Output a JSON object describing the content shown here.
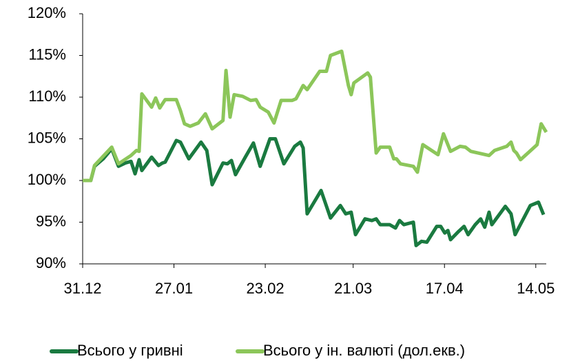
{
  "chart_data": {
    "type": "line",
    "xlim": [
      0,
      137.1
    ],
    "xticks": [
      {
        "value": 0,
        "label": "31.12"
      },
      {
        "value": 27,
        "label": "27.01"
      },
      {
        "value": 54,
        "label": "23.02"
      },
      {
        "value": 80,
        "label": "21.03"
      },
      {
        "value": 107,
        "label": "17.04"
      },
      {
        "value": 134,
        "label": "14.05"
      }
    ],
    "ylim": [
      90,
      120
    ],
    "yticks": [
      {
        "value": 90,
        "label": "90%"
      },
      {
        "value": 95,
        "label": "95%"
      },
      {
        "value": 100,
        "label": "100%"
      },
      {
        "value": 105,
        "label": "105%"
      },
      {
        "value": 110,
        "label": "110%"
      },
      {
        "value": 115,
        "label": "115%"
      },
      {
        "value": 120,
        "label": "120%"
      }
    ],
    "grid": false,
    "legend": "bottom",
    "series": [
      {
        "name": "Всього у гривні",
        "color": "#1a7a40",
        "x": [
          0,
          2.4,
          3.5,
          6.1,
          8.6,
          10.6,
          12.6,
          14.3,
          15.5,
          16.7,
          17.5,
          20.4,
          22.4,
          23.6,
          24.4,
          27.7,
          28.9,
          31.4,
          35,
          36.7,
          38.3,
          41.5,
          42.8,
          44,
          45.2,
          48.1,
          50.5,
          52.5,
          55.4,
          57,
          59.5,
          62.7,
          64.4,
          65.2,
          66.4,
          70.5,
          73.3,
          76.2,
          77.8,
          79.4,
          80.7,
          83.5,
          85.5,
          86.8,
          88,
          90.8,
          92.5,
          93.7,
          95,
          97.8,
          98.6,
          100.2,
          101.8,
          104.7,
          105.9,
          107.1,
          108,
          108.8,
          111.2,
          112.8,
          114,
          116.1,
          117.7,
          118.9,
          120.2,
          121,
          125,
          126.7,
          127.9,
          132.4,
          134.8,
          136.3
        ],
        "values": [
          100.0,
          100.0,
          101.7,
          102.6,
          103.8,
          101.7,
          102.1,
          102.3,
          100.8,
          102.5,
          101.2,
          102.8,
          101.8,
          102.1,
          102.2,
          104.8,
          104.6,
          102.6,
          104.6,
          103.6,
          99.5,
          102.1,
          102.0,
          102.4,
          100.7,
          102.8,
          104.5,
          101.7,
          105.0,
          105.0,
          102.0,
          104.1,
          104.6,
          103.9,
          96.0,
          98.8,
          95.5,
          97.0,
          96.0,
          96.2,
          93.5,
          95.4,
          95.2,
          95.4,
          94.7,
          94.7,
          94.3,
          95.2,
          94.7,
          95.0,
          92.2,
          92.7,
          92.6,
          94.5,
          94.5,
          93.7,
          94.0,
          92.9,
          93.9,
          94.5,
          93.5,
          94.7,
          95.4,
          94.4,
          96.2,
          94.7,
          96.9,
          96.0,
          93.5,
          97.0,
          97.4,
          95.9
        ]
      },
      {
        "name": "Всього у ін. валюті (дол.екв.)",
        "color": "#8cc65a",
        "x": [
          0,
          2.4,
          3.5,
          8.6,
          10.6,
          14.3,
          15.9,
          16.7,
          17.5,
          20.4,
          21.6,
          22.8,
          24.4,
          27.7,
          28.9,
          30.1,
          31.8,
          34.2,
          36.3,
          38.3,
          41.5,
          42.4,
          43.6,
          44.8,
          47.3,
          49.7,
          51.3,
          52.5,
          54.9,
          56.6,
          58.7,
          61.9,
          63.1,
          65.2,
          66.4,
          70.1,
          72.1,
          73.3,
          76.6,
          78.6,
          79.4,
          80.2,
          84.3,
          85.1,
          86.8,
          88,
          90.8,
          92,
          92.8,
          94,
          97.8,
          99,
          100.6,
          105.1,
          106.7,
          108.8,
          111.6,
          113.2,
          114.8,
          120.2,
          121.8,
          125.4,
          126.7,
          127.5,
          128.3,
          129.5,
          134.4,
          135.6,
          137.1
        ],
        "values": [
          100.0,
          100.0,
          101.8,
          104.0,
          102.0,
          103.0,
          103.6,
          103.5,
          110.4,
          108.8,
          109.9,
          108.7,
          109.7,
          109.7,
          108.4,
          106.8,
          106.5,
          106.9,
          108.0,
          106.2,
          107.2,
          113.2,
          107.6,
          110.3,
          110.1,
          109.6,
          109.7,
          108.8,
          108.2,
          106.9,
          109.6,
          109.6,
          109.8,
          111.4,
          110.9,
          113.1,
          113.1,
          115.0,
          115.5,
          111.4,
          110.3,
          111.7,
          112.9,
          112.4,
          103.3,
          104.0,
          104.0,
          102.6,
          102.6,
          102.0,
          101.7,
          101.0,
          104.3,
          103.1,
          105.6,
          103.5,
          104.1,
          104.0,
          103.5,
          103.0,
          103.6,
          104.1,
          104.6,
          103.6,
          103.3,
          102.5,
          104.3,
          106.8,
          105.8
        ]
      }
    ]
  }
}
